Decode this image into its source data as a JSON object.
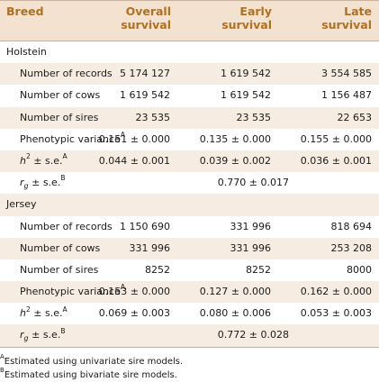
{
  "header": {
    "breed": "Breed",
    "overall_1": "Overall",
    "overall_2": "survival",
    "early_1": "Early",
    "early_2": "survival",
    "late_1": "Late",
    "late_2": "survival"
  },
  "holstein": {
    "name": "Holstein",
    "records": {
      "label": "Number of records",
      "overall": "5 174 127",
      "early": "1 619 542",
      "late": "3 554 585"
    },
    "cows": {
      "label": "Number of cows",
      "overall": "1 619 542",
      "early": "1 619 542",
      "late": "1 156 487"
    },
    "sires": {
      "label": "Number of sires",
      "overall": "23 535",
      "early": "23 535",
      "late": "22 653"
    },
    "pvar": {
      "label": "Phenotypic variance",
      "sup": "A",
      "overall": "0.151 ± 0.000",
      "early": "0.135 ± 0.000",
      "late": "0.155 ± 0.000"
    },
    "h2": {
      "label_h": "h",
      "label_pow": "2",
      "label_rest": " ± s.e.",
      "sup": "A",
      "overall": "0.044 ± 0.001",
      "early": "0.039 ± 0.002",
      "late": "0.036 ± 0.001"
    },
    "rg": {
      "label_r": "r",
      "label_sub": "g",
      "label_rest": " ± s.e.",
      "sup": "B",
      "value": "0.770 ± 0.017"
    }
  },
  "jersey": {
    "name": "Jersey",
    "records": {
      "label": "Number of records",
      "overall": "1 150 690",
      "early": "331 996",
      "late": "818 694"
    },
    "cows": {
      "label": "Number of cows",
      "overall": "331 996",
      "early": "331 996",
      "late": "253 208"
    },
    "sires": {
      "label": "Number of sires",
      "overall": "8252",
      "early": "8252",
      "late": "8000"
    },
    "pvar": {
      "label": "Phenotypic variance",
      "sup": "A",
      "overall": "0.153 ± 0.000",
      "early": "0.127 ± 0.000",
      "late": "0.162 ± 0.000"
    },
    "h2": {
      "label_h": "h",
      "label_pow": "2",
      "label_rest": " ± s.e.",
      "sup": "A",
      "overall": "0.069 ± 0.003",
      "early": "0.080 ± 0.006",
      "late": "0.053 ± 0.003"
    },
    "rg": {
      "label_r": "r",
      "label_sub": "g",
      "label_rest": " ± s.e.",
      "sup": "B",
      "value": "0.772 ± 0.028"
    }
  },
  "footnotes": {
    "a_mark": "A",
    "a_text": "Estimated using univariate sire models.",
    "b_mark": "B",
    "b_text": "Estimated using bivariate sire models."
  },
  "colors": {
    "header_bg": "#f3e2cf",
    "header_text": "#b0701f",
    "stripe": "#f7ece1",
    "rule": "#c8b49e"
  }
}
